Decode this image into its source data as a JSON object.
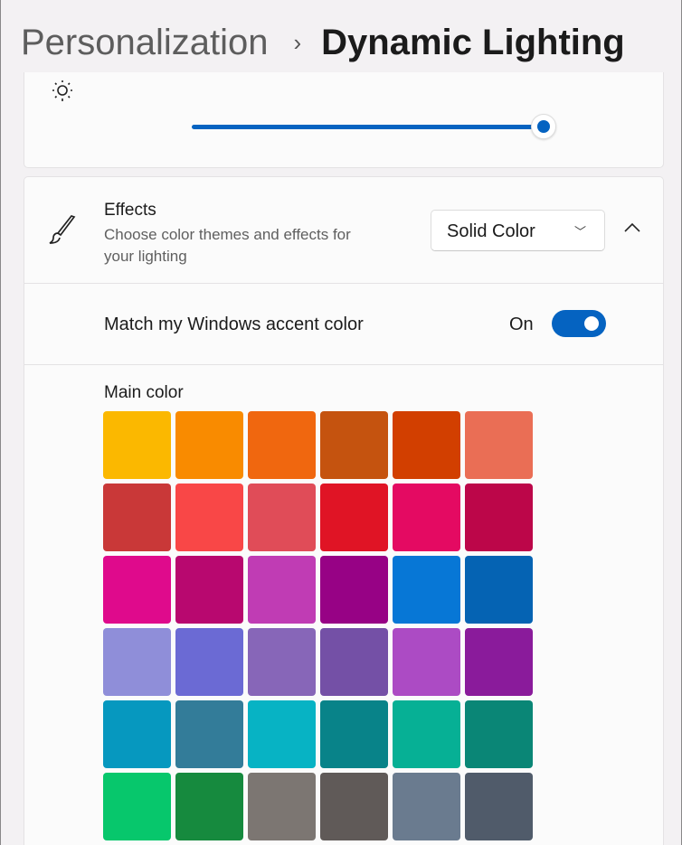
{
  "breadcrumb": {
    "parent": "Personalization",
    "separator": "›",
    "current": "Dynamic Lighting"
  },
  "brightness": {
    "icon": "sun-icon",
    "value_percent": 100,
    "accent": "#0563c1"
  },
  "effects": {
    "title": "Effects",
    "description": "Choose color themes and effects for your lighting",
    "dropdown_value": "Solid Color",
    "match_label": "Match my Windows accent color",
    "match_state": "On",
    "main_color_label": "Main color",
    "colors": [
      "#FBB800",
      "#F98B00",
      "#F0670F",
      "#C5530F",
      "#D23F00",
      "#EA6E55",
      "#C93838",
      "#F94747",
      "#E04C58",
      "#E01425",
      "#E40A62",
      "#BC0649",
      "#DF0A8C",
      "#B8086F",
      "#C03CB4",
      "#970285",
      "#0777D6",
      "#0563B3",
      "#8F8ED9",
      "#6B6AD4",
      "#8766B8",
      "#7450A6",
      "#AC4BC4",
      "#8A1B9B",
      "#0698BF",
      "#337C99",
      "#07B3C4",
      "#088389",
      "#06B095",
      "#0A8676",
      "#07C76C",
      "#168A3E",
      "#7C7672",
      "#605A58",
      "#6A7B8F",
      "#505B6A"
    ]
  }
}
